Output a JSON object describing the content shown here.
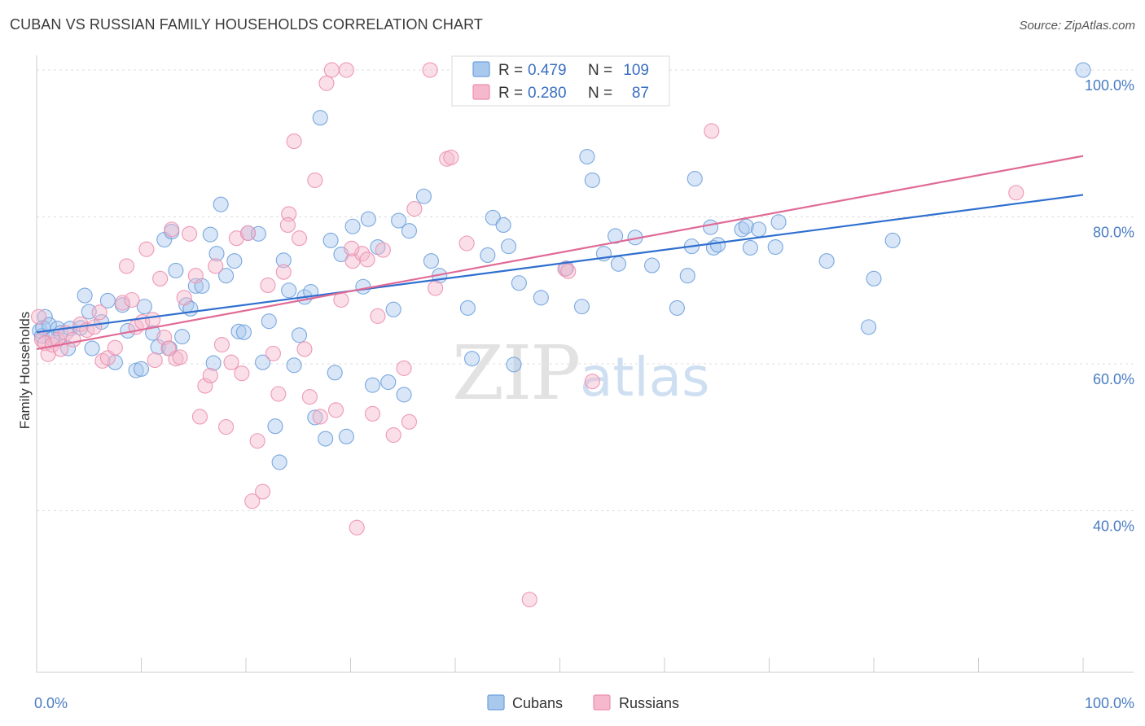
{
  "header": {
    "title": "CUBAN VS RUSSIAN FAMILY HOUSEHOLDS CORRELATION CHART",
    "source": "Source: ZipAtlas.com"
  },
  "legend": {
    "rows": [
      {
        "r_label": "R = ",
        "r_value": "0.479",
        "n_label": "N = ",
        "n_value": "109",
        "color": "#a9c8ee"
      },
      {
        "r_label": "R = ",
        "r_value": "0.280",
        "n_label": "N = ",
        "n_value": "87",
        "color": "#f5b8cc"
      }
    ]
  },
  "watermark": {
    "zip": "ZIP",
    "atlas": "atlas"
  },
  "chart_data": {
    "type": "scatter",
    "xlabel": "",
    "ylabel": "Family Households",
    "xlim": [
      0,
      100
    ],
    "ylim": [
      18,
      102
    ],
    "x_tick_labels": [
      "0.0%",
      "100.0%"
    ],
    "y_ticks": [
      {
        "value": 40,
        "label": "40.0%"
      },
      {
        "value": 60,
        "label": "60.0%"
      },
      {
        "value": 80,
        "label": "80.0%"
      },
      {
        "value": 100,
        "label": "100.0%"
      }
    ],
    "grid": true,
    "legend_position": "bottom",
    "series": [
      {
        "name": "Cubans",
        "color": "#6ea0dc",
        "fill": "#a9c8ee",
        "trend": {
          "x": [
            0,
            100
          ],
          "y": [
            64.3,
            83.0
          ],
          "color": "#2f6fcf"
        },
        "points": [
          [
            0.3,
            64.5
          ],
          [
            0.5,
            63.8
          ],
          [
            0.8,
            66.4
          ],
          [
            0.6,
            64.9
          ],
          [
            1.2,
            65.3
          ],
          [
            1.5,
            63.4
          ],
          [
            2.0,
            64.8
          ],
          [
            2.3,
            64.2
          ],
          [
            3.2,
            64.8
          ],
          [
            3.0,
            62.1
          ],
          [
            4.2,
            64.9
          ],
          [
            4.6,
            69.3
          ],
          [
            5.0,
            67.1
          ],
          [
            5.3,
            62.1
          ],
          [
            6.2,
            65.7
          ],
          [
            6.8,
            68.6
          ],
          [
            7.5,
            60.2
          ],
          [
            8.2,
            68.0
          ],
          [
            8.7,
            64.5
          ],
          [
            9.5,
            59.1
          ],
          [
            10.0,
            59.3
          ],
          [
            10.3,
            67.8
          ],
          [
            11.1,
            64.2
          ],
          [
            11.6,
            62.3
          ],
          [
            12.2,
            76.9
          ],
          [
            12.7,
            62.1
          ],
          [
            12.9,
            78.0
          ],
          [
            13.3,
            72.7
          ],
          [
            13.9,
            63.7
          ],
          [
            14.3,
            68.0
          ],
          [
            14.7,
            67.5
          ],
          [
            15.2,
            70.6
          ],
          [
            15.8,
            70.6
          ],
          [
            16.6,
            77.6
          ],
          [
            16.9,
            60.1
          ],
          [
            17.2,
            75.0
          ],
          [
            17.6,
            81.7
          ],
          [
            18.1,
            72.0
          ],
          [
            18.9,
            74.0
          ],
          [
            19.3,
            64.4
          ],
          [
            19.8,
            64.3
          ],
          [
            20.2,
            77.8
          ],
          [
            21.2,
            77.7
          ],
          [
            21.6,
            60.2
          ],
          [
            22.2,
            65.8
          ],
          [
            22.8,
            51.5
          ],
          [
            23.2,
            46.6
          ],
          [
            23.6,
            74.1
          ],
          [
            24.1,
            70.0
          ],
          [
            24.6,
            59.8
          ],
          [
            25.1,
            63.9
          ],
          [
            25.6,
            69.1
          ],
          [
            26.2,
            69.8
          ],
          [
            26.6,
            52.7
          ],
          [
            27.1,
            93.5
          ],
          [
            27.6,
            49.8
          ],
          [
            28.1,
            76.8
          ],
          [
            28.5,
            58.8
          ],
          [
            29.1,
            74.9
          ],
          [
            29.6,
            50.1
          ],
          [
            30.2,
            78.7
          ],
          [
            31.2,
            70.5
          ],
          [
            31.7,
            79.7
          ],
          [
            32.1,
            57.1
          ],
          [
            32.6,
            75.9
          ],
          [
            33.6,
            57.5
          ],
          [
            34.1,
            67.4
          ],
          [
            34.6,
            79.5
          ],
          [
            35.1,
            55.8
          ],
          [
            35.6,
            78.1
          ],
          [
            37.0,
            82.8
          ],
          [
            37.7,
            74.0
          ],
          [
            38.5,
            72.0
          ],
          [
            41.2,
            67.6
          ],
          [
            41.6,
            60.7
          ],
          [
            43.1,
            74.8
          ],
          [
            43.6,
            79.9
          ],
          [
            44.6,
            78.9
          ],
          [
            45.1,
            76.0
          ],
          [
            45.6,
            59.9
          ],
          [
            46.1,
            71.0
          ],
          [
            48.2,
            69.0
          ],
          [
            50.6,
            73.0
          ],
          [
            52.1,
            67.8
          ],
          [
            52.6,
            88.2
          ],
          [
            53.1,
            85.0
          ],
          [
            54.2,
            75.0
          ],
          [
            55.3,
            77.4
          ],
          [
            55.6,
            73.6
          ],
          [
            57.2,
            77.2
          ],
          [
            58.8,
            73.4
          ],
          [
            61.2,
            67.6
          ],
          [
            62.2,
            72.0
          ],
          [
            62.6,
            76.0
          ],
          [
            62.9,
            85.2
          ],
          [
            64.4,
            78.6
          ],
          [
            64.7,
            75.8
          ],
          [
            65.1,
            76.2
          ],
          [
            67.4,
            78.3
          ],
          [
            67.8,
            78.7
          ],
          [
            68.2,
            75.8
          ],
          [
            69.0,
            78.3
          ],
          [
            70.6,
            75.9
          ],
          [
            70.9,
            79.3
          ],
          [
            75.5,
            74.0
          ],
          [
            79.5,
            65.0
          ],
          [
            80.0,
            71.6
          ],
          [
            81.8,
            76.8
          ],
          [
            100.0,
            100.0
          ]
        ]
      },
      {
        "name": "Russians",
        "color": "#ec8fae",
        "fill": "#f5b8cc",
        "trend": {
          "x": [
            0,
            100
          ],
          "y": [
            62.0,
            88.3
          ],
          "color": "#e06a96"
        },
        "points": [
          [
            0.2,
            66.4
          ],
          [
            0.5,
            63.3
          ],
          [
            0.8,
            62.8
          ],
          [
            1.1,
            61.3
          ],
          [
            1.5,
            62.6
          ],
          [
            2.0,
            63.3
          ],
          [
            2.3,
            62.0
          ],
          [
            2.8,
            64.2
          ],
          [
            3.5,
            63.3
          ],
          [
            4.2,
            65.4
          ],
          [
            4.8,
            64.6
          ],
          [
            5.5,
            65.0
          ],
          [
            6.0,
            67.0
          ],
          [
            6.3,
            60.4
          ],
          [
            6.8,
            60.8
          ],
          [
            7.5,
            62.2
          ],
          [
            8.2,
            68.3
          ],
          [
            8.6,
            73.3
          ],
          [
            9.1,
            68.7
          ],
          [
            9.5,
            65.0
          ],
          [
            10.1,
            65.7
          ],
          [
            10.5,
            75.6
          ],
          [
            11.1,
            66.0
          ],
          [
            11.3,
            60.5
          ],
          [
            11.8,
            71.6
          ],
          [
            12.2,
            63.6
          ],
          [
            12.6,
            62.1
          ],
          [
            12.9,
            78.3
          ],
          [
            13.3,
            60.7
          ],
          [
            13.7,
            60.9
          ],
          [
            14.1,
            69.0
          ],
          [
            14.6,
            77.7
          ],
          [
            15.2,
            72.0
          ],
          [
            15.6,
            52.8
          ],
          [
            16.1,
            57.0
          ],
          [
            16.6,
            58.4
          ],
          [
            17.1,
            73.3
          ],
          [
            17.7,
            62.6
          ],
          [
            18.1,
            51.4
          ],
          [
            18.6,
            60.2
          ],
          [
            19.1,
            77.1
          ],
          [
            19.6,
            58.7
          ],
          [
            20.2,
            77.8
          ],
          [
            20.6,
            41.3
          ],
          [
            21.1,
            49.5
          ],
          [
            21.6,
            42.6
          ],
          [
            22.1,
            70.7
          ],
          [
            22.6,
            61.4
          ],
          [
            23.1,
            55.9
          ],
          [
            23.6,
            72.5
          ],
          [
            24.1,
            80.4
          ],
          [
            24.6,
            90.3
          ],
          [
            25.1,
            77.1
          ],
          [
            25.6,
            62.0
          ],
          [
            26.1,
            55.5
          ],
          [
            26.6,
            85.0
          ],
          [
            27.1,
            52.8
          ],
          [
            27.7,
            98.2
          ],
          [
            28.2,
            100.0
          ],
          [
            28.6,
            53.7
          ],
          [
            29.1,
            68.7
          ],
          [
            29.6,
            100.0
          ],
          [
            30.2,
            74.0
          ],
          [
            30.6,
            37.7
          ],
          [
            31.1,
            75.0
          ],
          [
            31.6,
            74.2
          ],
          [
            32.1,
            53.2
          ],
          [
            32.6,
            66.5
          ],
          [
            33.1,
            75.5
          ],
          [
            34.1,
            50.3
          ],
          [
            35.1,
            59.4
          ],
          [
            35.6,
            52.1
          ],
          [
            36.1,
            81.1
          ],
          [
            37.6,
            100.0
          ],
          [
            38.1,
            70.3
          ],
          [
            39.2,
            87.9
          ],
          [
            39.6,
            88.1
          ],
          [
            41.1,
            76.4
          ],
          [
            47.1,
            27.9
          ],
          [
            48.6,
            100.0
          ],
          [
            50.5,
            72.9
          ],
          [
            50.8,
            72.6
          ],
          [
            53.1,
            57.6
          ],
          [
            64.5,
            91.7
          ],
          [
            93.6,
            83.3
          ],
          [
            24.0,
            78.9
          ],
          [
            30.1,
            75.7
          ]
        ]
      }
    ]
  }
}
